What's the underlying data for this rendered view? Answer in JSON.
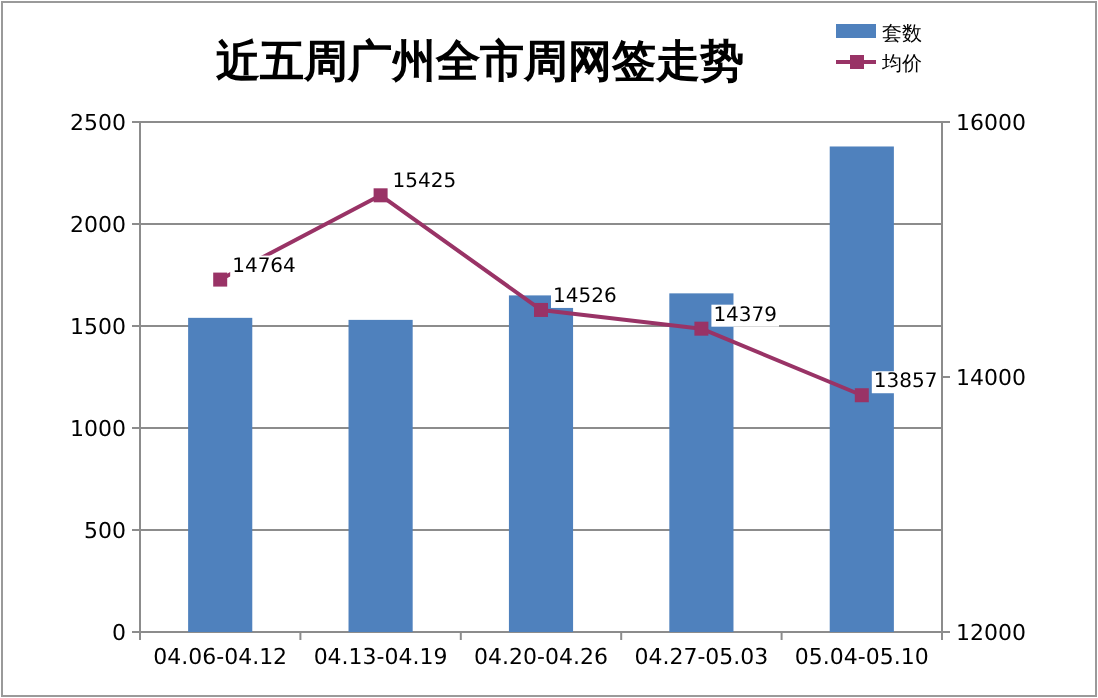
{
  "chart_data": {
    "type": "bar",
    "title": "近五周广州全市周网签走势",
    "categories": [
      "04.06-04.12",
      "04.13-04.19",
      "04.20-04.26",
      "04.27-05.03",
      "05.04-05.10"
    ],
    "series": [
      {
        "name": "套数",
        "color": "#4f81bd",
        "values": [
          1540,
          1530,
          1650,
          1660,
          2380
        ]
      },
      {
        "name": "均价",
        "type": "line",
        "axis": "y2",
        "color": "#993366",
        "marker": "square",
        "line_style": "solid",
        "values": [
          14764,
          15425,
          14526,
          14379,
          13857
        ],
        "value_labels": [
          "14764",
          "15425",
          "14526",
          "14379",
          "13857"
        ]
      }
    ],
    "ylim": [
      0,
      2500
    ],
    "yticks": [
      0,
      500,
      1000,
      1500,
      2000,
      2500
    ],
    "y2lim": [
      12000,
      16000
    ],
    "y2ticks": [
      12000,
      14000,
      16000
    ],
    "grid": "y",
    "legend": "top right"
  }
}
